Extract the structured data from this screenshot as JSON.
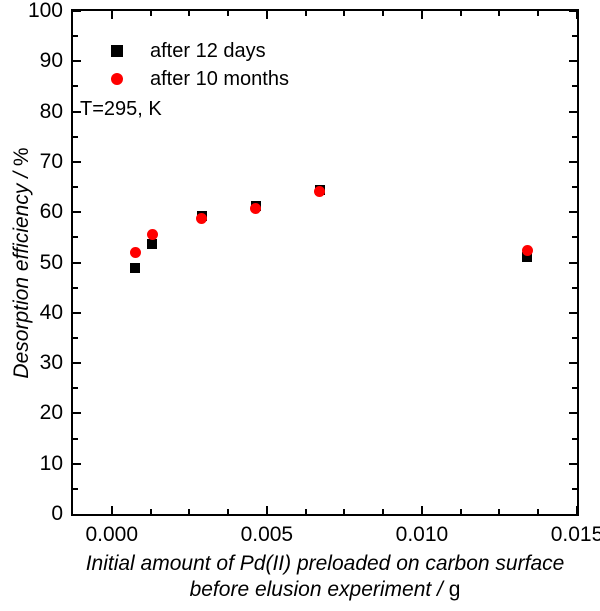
{
  "chart_data": {
    "type": "scatter",
    "title": "",
    "ylabel_text": "Desorption efficiency / ",
    "ylabel_unit": "%",
    "xlabel_line1": "Initial amount of Pd(II) preloaded on carbon surface",
    "xlabel_line2_text": "before elusion experiment / ",
    "xlabel_line2_unit": "g",
    "annotation": "T=295, K",
    "grid": false,
    "legend_position": "top-left-inside",
    "axes": {
      "x_min": -0.00125,
      "x_max": 0.015,
      "y_min": 0,
      "y_max": 100,
      "x_major_ticks": [
        0,
        0.005,
        0.01,
        0.015
      ],
      "x_tick_labels": [
        "0.000",
        "0.005",
        "0.010",
        "0.015"
      ],
      "x_minor_step": 0.00125,
      "y_major_ticks": [
        0,
        10,
        20,
        30,
        40,
        50,
        60,
        70,
        80,
        90,
        100
      ],
      "y_tick_labels": [
        "0",
        "10",
        "20",
        "30",
        "40",
        "50",
        "60",
        "70",
        "80",
        "90",
        "100"
      ],
      "y_minor_step": 5
    },
    "colors": {
      "frame": "#000000",
      "series1": "#000000",
      "series2": "#ff0000"
    },
    "series": [
      {
        "name": "after 12 days",
        "marker": "square",
        "color": "#000000",
        "points": [
          [
            0.00075,
            49
          ],
          [
            0.0013,
            53.7
          ],
          [
            0.0029,
            59.2
          ],
          [
            0.00465,
            61.2
          ],
          [
            0.0067,
            64.5
          ],
          [
            0.0134,
            51
          ]
        ]
      },
      {
        "name": "after 10 months",
        "marker": "circle",
        "color": "#ff0000",
        "points": [
          [
            0.00075,
            52
          ],
          [
            0.0013,
            55.5
          ],
          [
            0.0029,
            58.7
          ],
          [
            0.00465,
            60.8
          ],
          [
            0.0067,
            64.2
          ],
          [
            0.0134,
            52.3
          ]
        ]
      }
    ]
  }
}
